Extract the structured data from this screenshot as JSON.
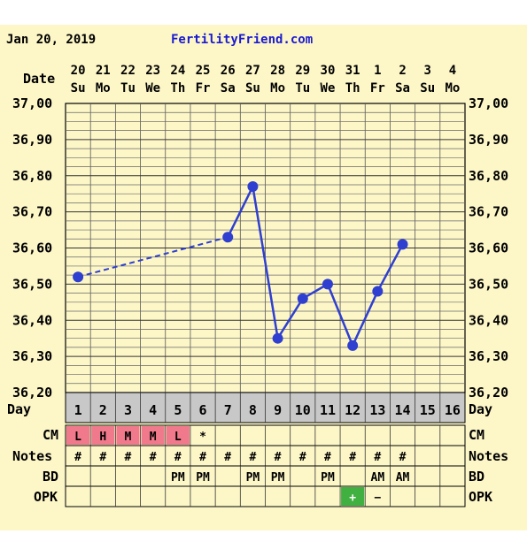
{
  "header": {
    "date": "Jan 20, 2019",
    "site": "FertilityFriend.com"
  },
  "labels": {
    "date": "Date",
    "day": "Day",
    "cm": "CM",
    "notes": "Notes",
    "bd": "BD",
    "opk": "OPK"
  },
  "colors": {
    "background": "#fdf7c8",
    "grid": "#000000",
    "line": "#2f3fd0",
    "site_text": "#1a1ad0",
    "day_row": "#c8c8c8",
    "cm_marker": "#f07a8c",
    "opk_positive": "#40b040"
  },
  "chart_data": {
    "type": "line",
    "title": "",
    "xlabel": "",
    "ylabel": "",
    "ylim": [
      36.2,
      37.0
    ],
    "y_ticks": [
      "37,00",
      "36,90",
      "36,80",
      "36,70",
      "36,60",
      "36,50",
      "36,40",
      "36,30",
      "36,20"
    ],
    "dates": [
      "20",
      "21",
      "22",
      "23",
      "24",
      "25",
      "26",
      "27",
      "28",
      "29",
      "30",
      "31",
      "1",
      "2",
      "3",
      "4"
    ],
    "weekdays": [
      "Su",
      "Mo",
      "Tu",
      "We",
      "Th",
      "Fr",
      "Sa",
      "Su",
      "Mo",
      "Tu",
      "We",
      "Th",
      "Fr",
      "Sa",
      "Su",
      "Mo"
    ],
    "cycle_days": [
      "1",
      "2",
      "3",
      "4",
      "5",
      "6",
      "7",
      "8",
      "9",
      "10",
      "11",
      "12",
      "13",
      "14",
      "15",
      "16"
    ],
    "series": [
      {
        "temperatures": [
          36.52,
          null,
          null,
          null,
          null,
          null,
          36.63,
          36.77,
          36.35,
          36.46,
          36.5,
          36.33,
          36.48,
          36.61,
          null,
          null
        ],
        "dashed_segments": [
          [
            0,
            6
          ]
        ]
      }
    ],
    "cm": [
      "L",
      "H",
      "M",
      "M",
      "L",
      "*",
      "",
      "",
      "",
      "",
      "",
      "",
      "",
      "",
      "",
      ""
    ],
    "cm_marked": [
      true,
      true,
      true,
      true,
      true,
      false,
      false,
      false,
      false,
      false,
      false,
      false,
      false,
      false,
      false,
      false
    ],
    "notes": [
      "#",
      "#",
      "#",
      "#",
      "#",
      "#",
      "#",
      "#",
      "#",
      "#",
      "#",
      "#",
      "#",
      "#",
      "",
      ""
    ],
    "bd": [
      "",
      "",
      "",
      "",
      "PM",
      "PM",
      "",
      "PM",
      "PM",
      "",
      "PM",
      "",
      "AM",
      "AM",
      "",
      ""
    ],
    "opk": [
      "",
      "",
      "",
      "",
      "",
      "",
      "",
      "",
      "",
      "",
      "",
      "+",
      "−",
      "",
      "",
      ""
    ],
    "opk_positive": [
      false,
      false,
      false,
      false,
      false,
      false,
      false,
      false,
      false,
      false,
      false,
      true,
      false,
      false,
      false,
      false
    ]
  }
}
